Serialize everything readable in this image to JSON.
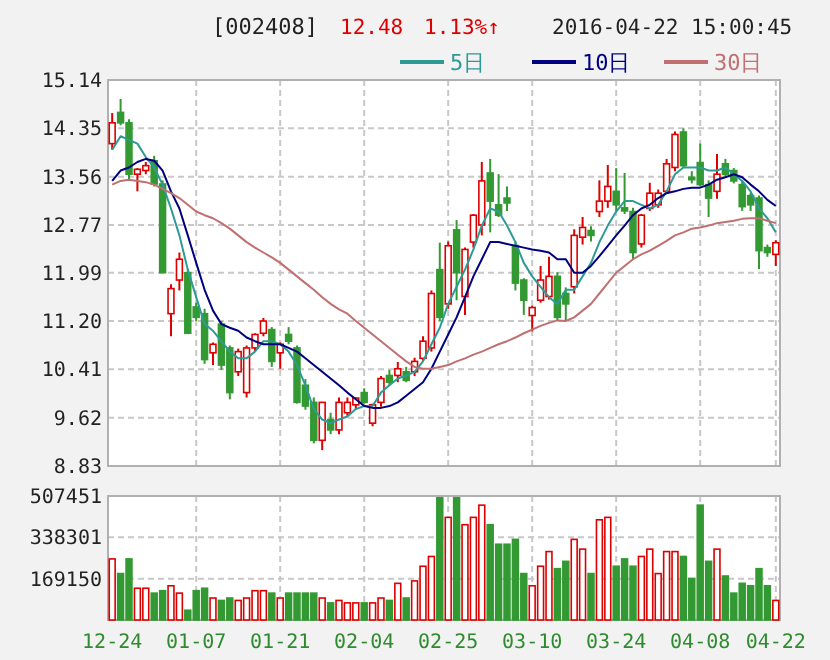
{
  "chart_data": [
    {
      "type": "candlestick",
      "title": "[002408]",
      "annotations": [
        "12.48",
        "1.13%↑",
        "2016-04-22 15:00:45"
      ],
      "categories": [
        null,
        null,
        null,
        null,
        null,
        null,
        null,
        null,
        null,
        null,
        null,
        null,
        null,
        null,
        null,
        null,
        null,
        null,
        null,
        null,
        null,
        null,
        null,
        null,
        null,
        null,
        null,
        null,
        null,
        null,
        null,
        null,
        null,
        null,
        null,
        null,
        null,
        null,
        null,
        null,
        null,
        null,
        null,
        null,
        null,
        null,
        null,
        null,
        null,
        null,
        null,
        null,
        null,
        null,
        null,
        null,
        null,
        null,
        null,
        null,
        null,
        null,
        null,
        null,
        null,
        null,
        null,
        null,
        null,
        null,
        null,
        null,
        null,
        null,
        null,
        null,
        null,
        null,
        null,
        null
      ],
      "ohlc": [
        [
          14.1,
          14.6,
          14.0,
          14.44
        ],
        [
          14.61,
          14.83,
          14.4,
          14.44
        ],
        [
          14.44,
          14.5,
          13.5,
          13.6
        ],
        [
          13.6,
          13.7,
          13.32,
          13.68
        ],
        [
          13.66,
          13.8,
          13.6,
          13.74
        ],
        [
          13.82,
          13.9,
          13.4,
          13.44
        ],
        [
          13.44,
          13.5,
          11.99,
          11.99
        ],
        [
          11.32,
          11.8,
          10.95,
          11.73
        ],
        [
          11.87,
          12.32,
          11.7,
          12.21
        ],
        [
          11.99,
          12.05,
          11.0,
          11.0
        ],
        [
          11.43,
          11.5,
          11.2,
          11.26
        ],
        [
          11.32,
          11.4,
          10.5,
          10.57
        ],
        [
          10.68,
          10.85,
          10.48,
          10.82
        ],
        [
          11.15,
          11.2,
          10.4,
          10.48
        ],
        [
          10.76,
          10.8,
          9.92,
          10.03
        ],
        [
          10.37,
          10.75,
          10.3,
          10.7
        ],
        [
          10.03,
          10.8,
          9.95,
          10.76
        ],
        [
          10.76,
          11.0,
          10.7,
          10.98
        ],
        [
          11.0,
          11.25,
          10.95,
          11.2
        ],
        [
          11.06,
          11.1,
          10.45,
          10.54
        ],
        [
          10.68,
          10.85,
          10.42,
          10.82
        ],
        [
          10.98,
          11.1,
          10.82,
          10.87
        ],
        [
          10.76,
          10.8,
          9.85,
          9.87
        ],
        [
          10.15,
          10.25,
          9.75,
          9.81
        ],
        [
          9.87,
          9.95,
          9.2,
          9.25
        ],
        [
          9.25,
          9.87,
          9.09,
          9.87
        ],
        [
          9.59,
          9.7,
          9.35,
          9.42
        ],
        [
          9.42,
          9.95,
          9.35,
          9.87
        ],
        [
          9.7,
          9.95,
          9.65,
          9.87
        ],
        [
          9.83,
          9.95,
          9.75,
          9.94
        ],
        [
          10.03,
          10.1,
          9.85,
          9.87
        ],
        [
          9.53,
          9.85,
          9.48,
          9.83
        ],
        [
          9.87,
          10.3,
          9.8,
          10.26
        ],
        [
          10.31,
          10.4,
          10.15,
          10.2
        ],
        [
          10.31,
          10.53,
          10.2,
          10.42
        ],
        [
          10.37,
          10.45,
          10.2,
          10.23
        ],
        [
          10.37,
          10.6,
          10.3,
          10.54
        ],
        [
          10.59,
          10.95,
          10.55,
          10.87
        ],
        [
          10.76,
          11.7,
          10.7,
          11.65
        ],
        [
          12.04,
          12.48,
          11.2,
          11.26
        ],
        [
          11.48,
          12.5,
          11.4,
          12.43
        ],
        [
          12.69,
          12.85,
          11.54,
          11.99
        ],
        [
          11.6,
          12.4,
          11.3,
          12.37
        ],
        [
          12.49,
          12.95,
          12.4,
          12.93
        ],
        [
          12.77,
          13.8,
          12.6,
          13.49
        ],
        [
          13.62,
          13.85,
          12.65,
          13.16
        ],
        [
          13.1,
          13.6,
          12.9,
          12.93
        ],
        [
          13.21,
          13.4,
          13.0,
          13.13
        ],
        [
          12.43,
          12.5,
          11.7,
          11.82
        ],
        [
          11.87,
          11.9,
          11.3,
          11.54
        ],
        [
          11.29,
          11.45,
          11.03,
          11.42
        ],
        [
          11.54,
          12.1,
          11.5,
          11.87
        ],
        [
          11.6,
          12.25,
          11.55,
          11.93
        ],
        [
          11.93,
          12.0,
          11.2,
          11.26
        ],
        [
          11.65,
          11.75,
          11.2,
          11.48
        ],
        [
          11.76,
          12.7,
          11.65,
          12.6
        ],
        [
          12.57,
          12.9,
          12.45,
          12.73
        ],
        [
          12.68,
          12.75,
          12.5,
          12.6
        ],
        [
          12.99,
          13.5,
          12.9,
          13.16
        ],
        [
          13.16,
          13.75,
          13.05,
          13.4
        ],
        [
          13.32,
          13.7,
          13.0,
          13.1
        ],
        [
          13.05,
          13.62,
          12.95,
          13.0
        ],
        [
          12.99,
          13.05,
          12.2,
          12.32
        ],
        [
          12.46,
          12.95,
          12.4,
          12.93
        ],
        [
          13.04,
          13.46,
          13.0,
          13.29
        ],
        [
          13.1,
          13.35,
          13.05,
          13.29
        ],
        [
          13.32,
          13.85,
          13.3,
          13.77
        ],
        [
          13.71,
          14.3,
          13.65,
          14.25
        ],
        [
          14.29,
          14.35,
          13.7,
          13.74
        ],
        [
          13.55,
          13.65,
          13.45,
          13.51
        ],
        [
          13.79,
          14.1,
          13.4,
          13.43
        ],
        [
          13.43,
          13.5,
          12.9,
          13.21
        ],
        [
          13.32,
          13.93,
          13.2,
          13.6
        ],
        [
          13.77,
          13.85,
          13.55,
          13.6
        ],
        [
          13.66,
          13.7,
          13.45,
          13.49
        ],
        [
          13.43,
          13.5,
          13.0,
          13.07
        ],
        [
          13.25,
          13.3,
          13.0,
          13.1
        ],
        [
          13.21,
          13.25,
          12.05,
          12.35
        ],
        [
          12.4,
          12.45,
          12.25,
          12.32
        ],
        [
          12.29,
          12.52,
          12.1,
          12.48
        ]
      ],
      "colors": [
        "#dd0000",
        "#339933",
        "#339933",
        "#dd0000",
        "#dd0000",
        "#339933",
        "#339933",
        "#dd0000",
        "#dd0000",
        "#339933",
        "#339933",
        "#339933",
        "#dd0000",
        "#339933",
        "#339933",
        "#dd0000",
        "#dd0000",
        "#dd0000",
        "#dd0000",
        "#339933",
        "#dd0000",
        "#339933",
        "#339933",
        "#339933",
        "#339933",
        "#dd0000",
        "#339933",
        "#dd0000",
        "#dd0000",
        "#dd0000",
        "#339933",
        "#dd0000",
        "#dd0000",
        "#339933",
        "#dd0000",
        "#339933",
        "#dd0000",
        "#dd0000",
        "#dd0000",
        "#339933",
        "#dd0000",
        "#339933",
        "#dd0000",
        "#dd0000",
        "#dd0000",
        "#339933",
        "#339933",
        "#339933",
        "#339933",
        "#339933",
        "#dd0000",
        "#dd0000",
        "#dd0000",
        "#339933",
        "#339933",
        "#dd0000",
        "#dd0000",
        "#339933",
        "#dd0000",
        "#dd0000",
        "#339933",
        "#339933",
        "#339933",
        "#dd0000",
        "#dd0000",
        "#dd0000",
        "#dd0000",
        "#dd0000",
        "#339933",
        "#339933",
        "#339933",
        "#339933",
        "#dd0000",
        "#339933",
        "#339933",
        "#339933",
        "#339933",
        "#339933",
        "#339933",
        "#dd0000"
      ],
      "series": [
        {
          "name": "5日",
          "type": "line",
          "color": "#2e9a96",
          "values": [
            14.0,
            14.22,
            14.16,
            14.1,
            13.88,
            13.71,
            13.43,
            13.04,
            12.6,
            12.04,
            11.59,
            11.15,
            11.04,
            10.87,
            10.7,
            10.59,
            10.59,
            10.7,
            10.87,
            10.87,
            10.82,
            10.7,
            10.48,
            10.15,
            9.76,
            9.59,
            9.53,
            9.59,
            9.64,
            9.76,
            9.81,
            9.81,
            10.03,
            10.15,
            10.26,
            10.31,
            10.37,
            10.54,
            10.82,
            11.09,
            11.48,
            11.76,
            12.04,
            12.37,
            12.76,
            13.04,
            12.99,
            12.76,
            12.49,
            12.15,
            11.93,
            11.76,
            11.59,
            11.48,
            11.71,
            11.71,
            11.93,
            12.15,
            12.49,
            12.76,
            12.99,
            13.16,
            13.16,
            13.1,
            13.04,
            13.1,
            13.32,
            13.6,
            13.71,
            13.71,
            13.71,
            13.66,
            13.66,
            13.71,
            13.6,
            13.49,
            13.32,
            13.04,
            12.88,
            12.65
          ]
        },
        {
          "name": "10日",
          "type": "line",
          "color": "#000080",
          "values": [
            13.49,
            13.66,
            13.71,
            13.8,
            13.85,
            13.82,
            13.66,
            13.32,
            13.04,
            12.6,
            12.15,
            11.71,
            11.37,
            11.15,
            11.09,
            11.04,
            10.93,
            10.87,
            10.82,
            10.82,
            10.82,
            10.76,
            10.7,
            10.59,
            10.48,
            10.37,
            10.26,
            10.15,
            10.03,
            9.92,
            9.81,
            9.78,
            9.78,
            9.81,
            9.87,
            9.98,
            10.09,
            10.2,
            10.42,
            10.7,
            10.98,
            11.26,
            11.59,
            11.93,
            12.21,
            12.49,
            12.49,
            12.46,
            12.43,
            12.4,
            12.37,
            12.35,
            12.32,
            12.21,
            12.21,
            11.99,
            11.99,
            12.1,
            12.26,
            12.43,
            12.6,
            12.76,
            12.93,
            13.04,
            13.1,
            13.21,
            13.29,
            13.32,
            13.36,
            13.38,
            13.38,
            13.43,
            13.51,
            13.55,
            13.6,
            13.55,
            13.43,
            13.32,
            13.18,
            13.08
          ]
        },
        {
          "name": "30日",
          "type": "line",
          "color": "#c07070",
          "values": [
            13.43,
            13.49,
            13.51,
            13.49,
            13.47,
            13.43,
            13.36,
            13.29,
            13.21,
            13.1,
            12.99,
            12.93,
            12.88,
            12.8,
            12.71,
            12.6,
            12.49,
            12.4,
            12.32,
            12.24,
            12.15,
            12.04,
            11.93,
            11.82,
            11.71,
            11.59,
            11.48,
            11.39,
            11.32,
            11.2,
            11.09,
            10.98,
            10.87,
            10.76,
            10.65,
            10.54,
            10.45,
            10.42,
            10.42,
            10.45,
            10.48,
            10.54,
            10.59,
            10.65,
            10.7,
            10.76,
            10.82,
            10.87,
            10.93,
            11.0,
            11.06,
            11.12,
            11.17,
            11.21,
            11.2,
            11.26,
            11.37,
            11.48,
            11.65,
            11.82,
            11.99,
            12.1,
            12.21,
            12.29,
            12.35,
            12.43,
            12.51,
            12.6,
            12.65,
            12.71,
            12.73,
            12.76,
            12.8,
            12.82,
            12.84,
            12.87,
            12.88,
            12.88,
            12.84,
            12.8
          ]
        }
      ],
      "ylim": [
        8.83,
        15.14
      ],
      "yticks": [
        {
          "value": 8.83,
          "label": "8.83"
        },
        {
          "value": 9.62,
          "label": "9.62"
        },
        {
          "value": 10.41,
          "label": "10.41"
        },
        {
          "value": 11.2,
          "label": "11.20"
        },
        {
          "value": 11.99,
          "label": "11.99"
        },
        {
          "value": 12.77,
          "label": "12.77"
        },
        {
          "value": 13.56,
          "label": "13.56"
        },
        {
          "value": 14.35,
          "label": "14.35"
        },
        {
          "value": 15.14,
          "label": "15.14"
        }
      ],
      "grid": true,
      "legend": "top right",
      "tick_labels": "y"
    },
    {
      "type": "bar",
      "categories": [
        "12-24",
        null,
        null,
        null,
        null,
        null,
        null,
        null,
        null,
        null,
        "01-07",
        null,
        null,
        null,
        null,
        null,
        null,
        null,
        null,
        null,
        "01-21",
        null,
        null,
        null,
        null,
        null,
        null,
        null,
        null,
        null,
        "02-04",
        null,
        null,
        null,
        null,
        null,
        null,
        null,
        null,
        null,
        "02-25",
        null,
        null,
        null,
        null,
        null,
        null,
        null,
        null,
        null,
        "03-10",
        null,
        null,
        null,
        null,
        null,
        null,
        null,
        null,
        null,
        "03-24",
        null,
        null,
        null,
        null,
        null,
        null,
        null,
        null,
        null,
        "04-08",
        null,
        null,
        null,
        null,
        null,
        null,
        null,
        null,
        "04-22"
      ],
      "values": [
        250000,
        190000,
        250000,
        130000,
        130000,
        110000,
        120000,
        140000,
        110000,
        40000,
        120000,
        130000,
        90000,
        80000,
        90000,
        80000,
        90000,
        120000,
        120000,
        110000,
        90000,
        110000,
        110000,
        110000,
        110000,
        90000,
        70000,
        80000,
        70000,
        70000,
        70000,
        70000,
        90000,
        80000,
        150000,
        90000,
        160000,
        220000,
        260000,
        500000,
        420000,
        500000,
        390000,
        420000,
        470000,
        390000,
        310000,
        310000,
        330000,
        190000,
        140000,
        220000,
        280000,
        210000,
        240000,
        330000,
        290000,
        190000,
        410000,
        420000,
        220000,
        250000,
        220000,
        260000,
        290000,
        190000,
        280000,
        280000,
        260000,
        170000,
        470000,
        240000,
        290000,
        180000,
        110000,
        150000,
        140000,
        210000,
        140000,
        80000
      ],
      "colors": [
        "#dd0000",
        "#339933",
        "#339933",
        "#dd0000",
        "#dd0000",
        "#339933",
        "#339933",
        "#dd0000",
        "#dd0000",
        "#339933",
        "#339933",
        "#339933",
        "#dd0000",
        "#339933",
        "#339933",
        "#dd0000",
        "#dd0000",
        "#dd0000",
        "#dd0000",
        "#339933",
        "#dd0000",
        "#339933",
        "#339933",
        "#339933",
        "#339933",
        "#dd0000",
        "#339933",
        "#dd0000",
        "#dd0000",
        "#dd0000",
        "#339933",
        "#dd0000",
        "#dd0000",
        "#339933",
        "#dd0000",
        "#339933",
        "#dd0000",
        "#dd0000",
        "#dd0000",
        "#339933",
        "#dd0000",
        "#339933",
        "#dd0000",
        "#dd0000",
        "#dd0000",
        "#339933",
        "#339933",
        "#339933",
        "#339933",
        "#339933",
        "#dd0000",
        "#dd0000",
        "#dd0000",
        "#339933",
        "#339933",
        "#dd0000",
        "#dd0000",
        "#339933",
        "#dd0000",
        "#dd0000",
        "#339933",
        "#339933",
        "#339933",
        "#dd0000",
        "#dd0000",
        "#dd0000",
        "#dd0000",
        "#dd0000",
        "#339933",
        "#339933",
        "#339933",
        "#339933",
        "#dd0000",
        "#339933",
        "#339933",
        "#339933",
        "#339933",
        "#339933",
        "#339933",
        "#dd0000"
      ],
      "ylim": [
        0,
        507451
      ],
      "yticks": [
        169150,
        338301,
        507451
      ],
      "grid": true
    }
  ]
}
